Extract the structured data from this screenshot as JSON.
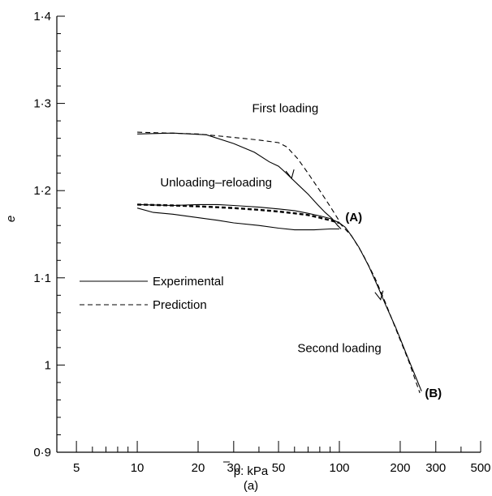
{
  "chart_data": {
    "type": "line",
    "xlabel_p": "p",
    "xlabel_rest": ": kPa",
    "ylabel": "e",
    "caption": "(a)",
    "x_scale": "log",
    "xlim": [
      4,
      500
    ],
    "ylim": [
      0.9,
      1.4
    ],
    "x_ticks": [
      5,
      10,
      20,
      30,
      50,
      100,
      200,
      300,
      500
    ],
    "x_tick_labels": [
      "5",
      "10",
      "20",
      "30",
      "50",
      "100",
      "200",
      "300",
      "500"
    ],
    "x_minor_ticks": [
      6,
      7,
      8,
      9,
      40,
      60,
      70,
      80,
      90,
      400
    ],
    "y_ticks": [
      0.9,
      1.0,
      1.1,
      1.2,
      1.3,
      1.4
    ],
    "y_tick_labels": [
      "0·9",
      "1",
      "1·1",
      "1·2",
      "1·3",
      "1·4"
    ],
    "y_minor_step": 0.02,
    "grid": false,
    "legend": {
      "placement": "left-middle",
      "entries": [
        {
          "label": "Experimental",
          "style": "solid"
        },
        {
          "label": "Prediction",
          "style": "dashed"
        }
      ]
    },
    "annotations": [
      {
        "text": "First loading",
        "x": 37,
        "y": 1.29,
        "bold": false
      },
      {
        "text": "Unloading–reloading",
        "x": 13,
        "y": 1.205,
        "bold": false
      },
      {
        "text": "(A)",
        "x": 107,
        "y": 1.165,
        "bold": true
      },
      {
        "text": "Second loading",
        "x": 62,
        "y": 1.015,
        "bold": false
      },
      {
        "text": "(B)",
        "x": 265,
        "y": 0.963,
        "bold": true
      }
    ],
    "series": [
      {
        "style": "solid",
        "x": [
          10,
          15,
          22,
          30,
          38,
          45,
          50,
          54,
          58,
          63,
          70,
          78,
          85,
          92,
          98,
          102
        ],
        "y": [
          1.265,
          1.266,
          1.264,
          1.254,
          1.244,
          1.233,
          1.228,
          1.221,
          1.214,
          1.206,
          1.196,
          1.184,
          1.175,
          1.168,
          1.16,
          1.156
        ]
      },
      {
        "style": "solid",
        "x": [
          100,
          90,
          75,
          60,
          50,
          40,
          30,
          25,
          20,
          15,
          12,
          10
        ],
        "y": [
          1.156,
          1.156,
          1.155,
          1.155,
          1.157,
          1.16,
          1.163,
          1.166,
          1.169,
          1.173,
          1.175,
          1.18
        ]
      },
      {
        "style": "solid",
        "x": [
          10,
          15,
          20,
          25,
          30,
          40,
          50,
          60,
          70,
          80,
          90,
          100,
          107
        ],
        "y": [
          1.184,
          1.183,
          1.184,
          1.184,
          1.183,
          1.181,
          1.179,
          1.177,
          1.174,
          1.171,
          1.168,
          1.163,
          1.158
        ]
      },
      {
        "style": "solid",
        "x": [
          107,
          115,
          125,
          140,
          155,
          170,
          190,
          215,
          240,
          255
        ],
        "y": [
          1.158,
          1.148,
          1.135,
          1.113,
          1.09,
          1.068,
          1.043,
          1.012,
          0.985,
          0.97
        ]
      },
      {
        "style": "dashed",
        "x": [
          10,
          20,
          30,
          40,
          50,
          55,
          62,
          70,
          80,
          90,
          100
        ],
        "y": [
          1.267,
          1.265,
          1.261,
          1.258,
          1.255,
          1.25,
          1.237,
          1.22,
          1.2,
          1.182,
          1.165
        ]
      },
      {
        "style": "dashed-bold",
        "x": [
          10,
          15,
          20,
          30,
          40,
          50,
          60,
          70,
          80,
          90,
          100
        ],
        "y": [
          1.184,
          1.183,
          1.182,
          1.18,
          1.178,
          1.176,
          1.174,
          1.172,
          1.169,
          1.166,
          1.163
        ]
      },
      {
        "style": "dashed",
        "x": [
          100,
          115,
          130,
          150,
          170,
          195,
          220,
          250
        ],
        "y": [
          1.163,
          1.148,
          1.128,
          1.1,
          1.07,
          1.035,
          1.005,
          0.968
        ]
      }
    ],
    "arrows": [
      {
        "x": 58,
        "y": 1.214
      },
      {
        "x": 160,
        "y": 1.075
      }
    ]
  }
}
